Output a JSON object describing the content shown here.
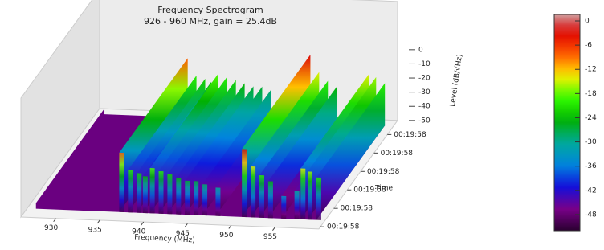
{
  "chart_data": {
    "type": "spectrogram3d",
    "title": "Frequency Spectrogram",
    "subtitle": "926 - 960 MHz, gain = 25.4dB",
    "xlabel": "Frequency (MHz)",
    "ylabel": "Time",
    "zlabel": "Level (dB/√Hz)",
    "xlim": [
      926,
      960
    ],
    "xticks": [
      930,
      935,
      940,
      945,
      950,
      955
    ],
    "zlim": [
      -50,
      0
    ],
    "zticks": [
      0,
      -10,
      -20,
      -30,
      -40,
      -50
    ],
    "time_labels": [
      "00:19:58",
      "00:19:58",
      "00:19:58",
      "00:19:58",
      "00:19:58",
      "00:19:58"
    ],
    "x": [
      936.5,
      937.5,
      938.5,
      939.2,
      940.0,
      941.0,
      942.0,
      943.0,
      944.0,
      945.0,
      946.0,
      947.5,
      950.5,
      951.5,
      952.5,
      953.5,
      955.0,
      956.5,
      957.2,
      958.0,
      959.0
    ],
    "values": [
      -8,
      -20,
      -22,
      -24,
      -18,
      -20,
      -22,
      -24,
      -26,
      -26,
      -28,
      -30,
      -2,
      -14,
      -20,
      -24,
      -34,
      -30,
      -14,
      -16,
      -20
    ],
    "colormap": [
      "#2a0030",
      "#7a008a",
      "#1010dd",
      "#0088dd",
      "#00aa99",
      "#00b000",
      "#33ff00",
      "#ffee00",
      "#ff5500",
      "#dd0000",
      "#cccccc"
    ],
    "colorbar_lim": [
      -52,
      0
    ],
    "colorbar_ticks": [
      0,
      -6,
      -12,
      -18,
      -24,
      -30,
      -36,
      -42,
      -48
    ]
  }
}
